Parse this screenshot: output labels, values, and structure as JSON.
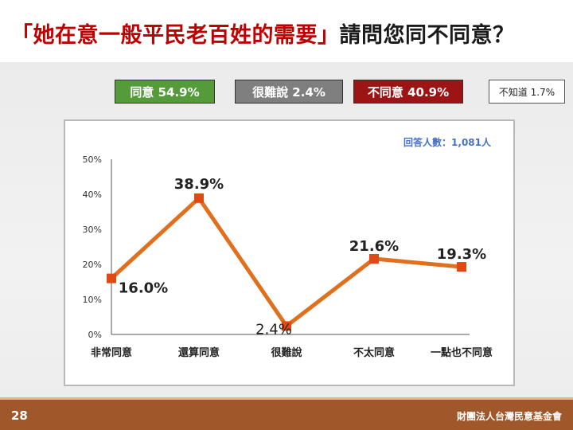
{
  "title": {
    "quote": "「她在意一般平民老百姓的需要」",
    "question": "請問您同不同意？"
  },
  "summary": {
    "agree": "同意 54.9%",
    "hard_to_say": "很難說 2.4%",
    "disagree": "不同意 40.9%",
    "unknown": "不知道 1.7%"
  },
  "colors": {
    "agree": "#559b3a",
    "hard_to_say": "#7f7f7f",
    "disagree": "#9c1414",
    "line": "#e0701e",
    "marker": "#e04a12",
    "footer": "#a0572a"
  },
  "chart_data": {
    "type": "line",
    "title": "",
    "xlabel": "",
    "ylabel": "",
    "sample_note": "回答人數：1,081人",
    "categories": [
      "非常同意",
      "還算同意",
      "很難說",
      "不太同意",
      "一點也不同意"
    ],
    "values": [
      16.0,
      38.9,
      2.4,
      21.6,
      19.3
    ],
    "data_labels": [
      "16.0%",
      "38.9%",
      "2.4%",
      "21.6%",
      "19.3%"
    ],
    "y_ticks": [
      "0%",
      "10%",
      "20%",
      "30%",
      "40%",
      "50%"
    ],
    "ylim": [
      0,
      50
    ],
    "grid": false,
    "legend": "none"
  },
  "footer": {
    "page": "28",
    "org": "財團法人台灣民意基金會"
  }
}
